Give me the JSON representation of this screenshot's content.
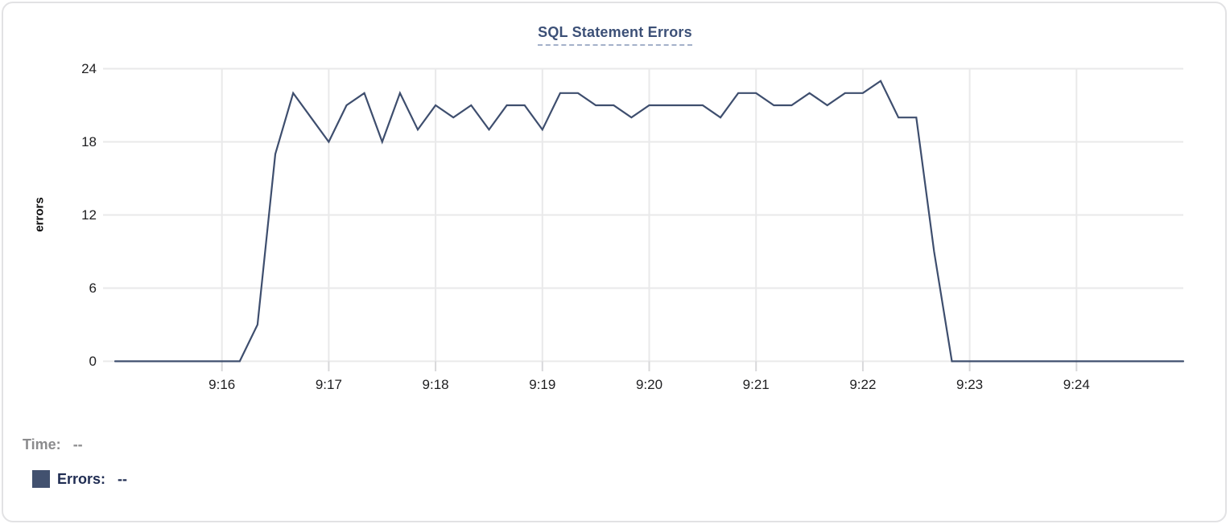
{
  "card_title": "SQL Statement Errors",
  "tooltip": {
    "time_label": "Time:",
    "time_value": "--",
    "errors_label": "Errors:",
    "errors_value": "--"
  },
  "colors": {
    "line": "#3e4e6e",
    "grid": "#e9e9ea",
    "axis_tick": "#d8d8da",
    "title": "#3c5077",
    "title_underline": "#a3b0c9",
    "axis_text": "#202022",
    "time_text": "#8b8b8d",
    "errors_text": "#1f2c52",
    "swatch": "#42516f",
    "card_border": "#e2e2e4"
  },
  "chart_data": {
    "type": "line",
    "title": "SQL Statement Errors",
    "xlabel": "",
    "ylabel": "errors",
    "ylim": [
      0,
      24
    ],
    "y_ticks": [
      0,
      6,
      12,
      18,
      24
    ],
    "x_ticks": [
      "9:16",
      "9:17",
      "9:18",
      "9:19",
      "9:20",
      "9:21",
      "9:22",
      "9:23",
      "9:24"
    ],
    "x_range": {
      "start": "9:15:00",
      "end": "9:25:00"
    },
    "interval_seconds": 10,
    "grid": true,
    "legend_position": "bottom-left",
    "series": [
      {
        "name": "Errors",
        "color": "#3e4e6e",
        "start": "9:15:00",
        "values": [
          0,
          0,
          0,
          0,
          0,
          0,
          0,
          0,
          3,
          17,
          22,
          20,
          18,
          21,
          22,
          18,
          22,
          19,
          21,
          20,
          21,
          19,
          21,
          21,
          19,
          22,
          22,
          21,
          21,
          20,
          21,
          21,
          21,
          21,
          20,
          22,
          22,
          21,
          21,
          22,
          21,
          22,
          22,
          23,
          20,
          20,
          9,
          0,
          0,
          0,
          0,
          0,
          0,
          0,
          0,
          0,
          0,
          0,
          0,
          0,
          0
        ]
      }
    ]
  }
}
